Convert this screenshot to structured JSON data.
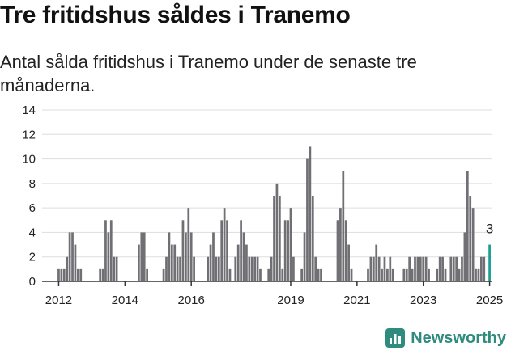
{
  "header": {
    "title": "Tre fritidshus såldes i Tranemo",
    "subtitle": "Antal sålda fritidshus i Tranemo under de senaste tre månaderna."
  },
  "brand": {
    "name": "Newsworthy",
    "color": "#2e8b7d",
    "icon": "newsworthy-chart-icon"
  },
  "colors": {
    "bar": "#6f6f74",
    "highlight": "#1a9e93",
    "grid": "#dddddd",
    "axis": "#333333"
  },
  "chart_data": {
    "type": "bar",
    "title": "Tre fritidshus såldes i Tranemo",
    "subtitle": "Antal sålda fritidshus i Tranemo under de senaste tre månaderna.",
    "x_range": [
      "2011-07",
      "2025-02"
    ],
    "ylim": [
      0,
      14
    ],
    "yticks": [
      0,
      2,
      4,
      6,
      8,
      10,
      12,
      14
    ],
    "xticks": [
      {
        "label": "2012",
        "date": "2012-01"
      },
      {
        "label": "2014",
        "date": "2014-01"
      },
      {
        "label": "2016",
        "date": "2016-01"
      },
      {
        "label": "2019",
        "date": "2019-01"
      },
      {
        "label": "2021",
        "date": "2021-01"
      },
      {
        "label": "2023",
        "date": "2023-01"
      },
      {
        "label": "2025",
        "date": "2025-01"
      }
    ],
    "grid": true,
    "series": [
      {
        "values": [
          {
            "month": "2012-01",
            "value": 1
          },
          {
            "month": "2012-02",
            "value": 1
          },
          {
            "month": "2012-03",
            "value": 1
          },
          {
            "month": "2012-04",
            "value": 2
          },
          {
            "month": "2012-05",
            "value": 4
          },
          {
            "month": "2012-06",
            "value": 4
          },
          {
            "month": "2012-07",
            "value": 3
          },
          {
            "month": "2012-08",
            "value": 1
          },
          {
            "month": "2012-09",
            "value": 1
          },
          {
            "month": "2013-04",
            "value": 1
          },
          {
            "month": "2013-05",
            "value": 1
          },
          {
            "month": "2013-06",
            "value": 5
          },
          {
            "month": "2013-07",
            "value": 4
          },
          {
            "month": "2013-08",
            "value": 5
          },
          {
            "month": "2013-09",
            "value": 2
          },
          {
            "month": "2013-10",
            "value": 2
          },
          {
            "month": "2014-06",
            "value": 3
          },
          {
            "month": "2014-07",
            "value": 4
          },
          {
            "month": "2014-08",
            "value": 4
          },
          {
            "month": "2014-09",
            "value": 1
          },
          {
            "month": "2015-03",
            "value": 1
          },
          {
            "month": "2015-04",
            "value": 2
          },
          {
            "month": "2015-05",
            "value": 4
          },
          {
            "month": "2015-06",
            "value": 3
          },
          {
            "month": "2015-07",
            "value": 3
          },
          {
            "month": "2015-08",
            "value": 2
          },
          {
            "month": "2015-09",
            "value": 2
          },
          {
            "month": "2015-10",
            "value": 5
          },
          {
            "month": "2015-11",
            "value": 4
          },
          {
            "month": "2015-12",
            "value": 6
          },
          {
            "month": "2016-01",
            "value": 4
          },
          {
            "month": "2016-02",
            "value": 2
          },
          {
            "month": "2016-07",
            "value": 2
          },
          {
            "month": "2016-08",
            "value": 3
          },
          {
            "month": "2016-09",
            "value": 4
          },
          {
            "month": "2016-10",
            "value": 2
          },
          {
            "month": "2016-11",
            "value": 2
          },
          {
            "month": "2016-12",
            "value": 5
          },
          {
            "month": "2017-01",
            "value": 6
          },
          {
            "month": "2017-02",
            "value": 5
          },
          {
            "month": "2017-03",
            "value": 1
          },
          {
            "month": "2017-05",
            "value": 2
          },
          {
            "month": "2017-06",
            "value": 3
          },
          {
            "month": "2017-07",
            "value": 5
          },
          {
            "month": "2017-08",
            "value": 4
          },
          {
            "month": "2017-09",
            "value": 3
          },
          {
            "month": "2017-10",
            "value": 2
          },
          {
            "month": "2017-11",
            "value": 2
          },
          {
            "month": "2017-12",
            "value": 2
          },
          {
            "month": "2018-01",
            "value": 2
          },
          {
            "month": "2018-02",
            "value": 1
          },
          {
            "month": "2018-05",
            "value": 1
          },
          {
            "month": "2018-06",
            "value": 2
          },
          {
            "month": "2018-07",
            "value": 7
          },
          {
            "month": "2018-08",
            "value": 8
          },
          {
            "month": "2018-09",
            "value": 7
          },
          {
            "month": "2018-10",
            "value": 1
          },
          {
            "month": "2018-11",
            "value": 5
          },
          {
            "month": "2018-12",
            "value": 5
          },
          {
            "month": "2019-01",
            "value": 6
          },
          {
            "month": "2019-02",
            "value": 2
          },
          {
            "month": "2019-05",
            "value": 1
          },
          {
            "month": "2019-06",
            "value": 4
          },
          {
            "month": "2019-07",
            "value": 10
          },
          {
            "month": "2019-08",
            "value": 11
          },
          {
            "month": "2019-09",
            "value": 7
          },
          {
            "month": "2019-10",
            "value": 2
          },
          {
            "month": "2019-11",
            "value": 1
          },
          {
            "month": "2019-12",
            "value": 1
          },
          {
            "month": "2020-06",
            "value": 5
          },
          {
            "month": "2020-07",
            "value": 6
          },
          {
            "month": "2020-08",
            "value": 9
          },
          {
            "month": "2020-09",
            "value": 5
          },
          {
            "month": "2020-10",
            "value": 3
          },
          {
            "month": "2020-11",
            "value": 1
          },
          {
            "month": "2021-05",
            "value": 1
          },
          {
            "month": "2021-06",
            "value": 2
          },
          {
            "month": "2021-07",
            "value": 2
          },
          {
            "month": "2021-08",
            "value": 3
          },
          {
            "month": "2021-09",
            "value": 2
          },
          {
            "month": "2021-10",
            "value": 1
          },
          {
            "month": "2021-11",
            "value": 2
          },
          {
            "month": "2021-12",
            "value": 1
          },
          {
            "month": "2022-01",
            "value": 2
          },
          {
            "month": "2022-02",
            "value": 1
          },
          {
            "month": "2022-06",
            "value": 1
          },
          {
            "month": "2022-07",
            "value": 1
          },
          {
            "month": "2022-08",
            "value": 2
          },
          {
            "month": "2022-09",
            "value": 1
          },
          {
            "month": "2022-10",
            "value": 2
          },
          {
            "month": "2022-11",
            "value": 2
          },
          {
            "month": "2022-12",
            "value": 2
          },
          {
            "month": "2023-01",
            "value": 2
          },
          {
            "month": "2023-02",
            "value": 2
          },
          {
            "month": "2023-03",
            "value": 1
          },
          {
            "month": "2023-06",
            "value": 1
          },
          {
            "month": "2023-07",
            "value": 2
          },
          {
            "month": "2023-08",
            "value": 2
          },
          {
            "month": "2023-09",
            "value": 1
          },
          {
            "month": "2023-11",
            "value": 2
          },
          {
            "month": "2023-12",
            "value": 2
          },
          {
            "month": "2024-01",
            "value": 2
          },
          {
            "month": "2024-02",
            "value": 1
          },
          {
            "month": "2024-03",
            "value": 2
          },
          {
            "month": "2024-04",
            "value": 4
          },
          {
            "month": "2024-05",
            "value": 9
          },
          {
            "month": "2024-06",
            "value": 7
          },
          {
            "month": "2024-07",
            "value": 6
          },
          {
            "month": "2024-08",
            "value": 1
          },
          {
            "month": "2024-09",
            "value": 1
          },
          {
            "month": "2024-10",
            "value": 2
          },
          {
            "month": "2024-11",
            "value": 2
          },
          {
            "month": "2025-01",
            "value": 3
          }
        ]
      }
    ],
    "highlight": {
      "month": "2025-01",
      "value": 3,
      "label": "3"
    }
  }
}
